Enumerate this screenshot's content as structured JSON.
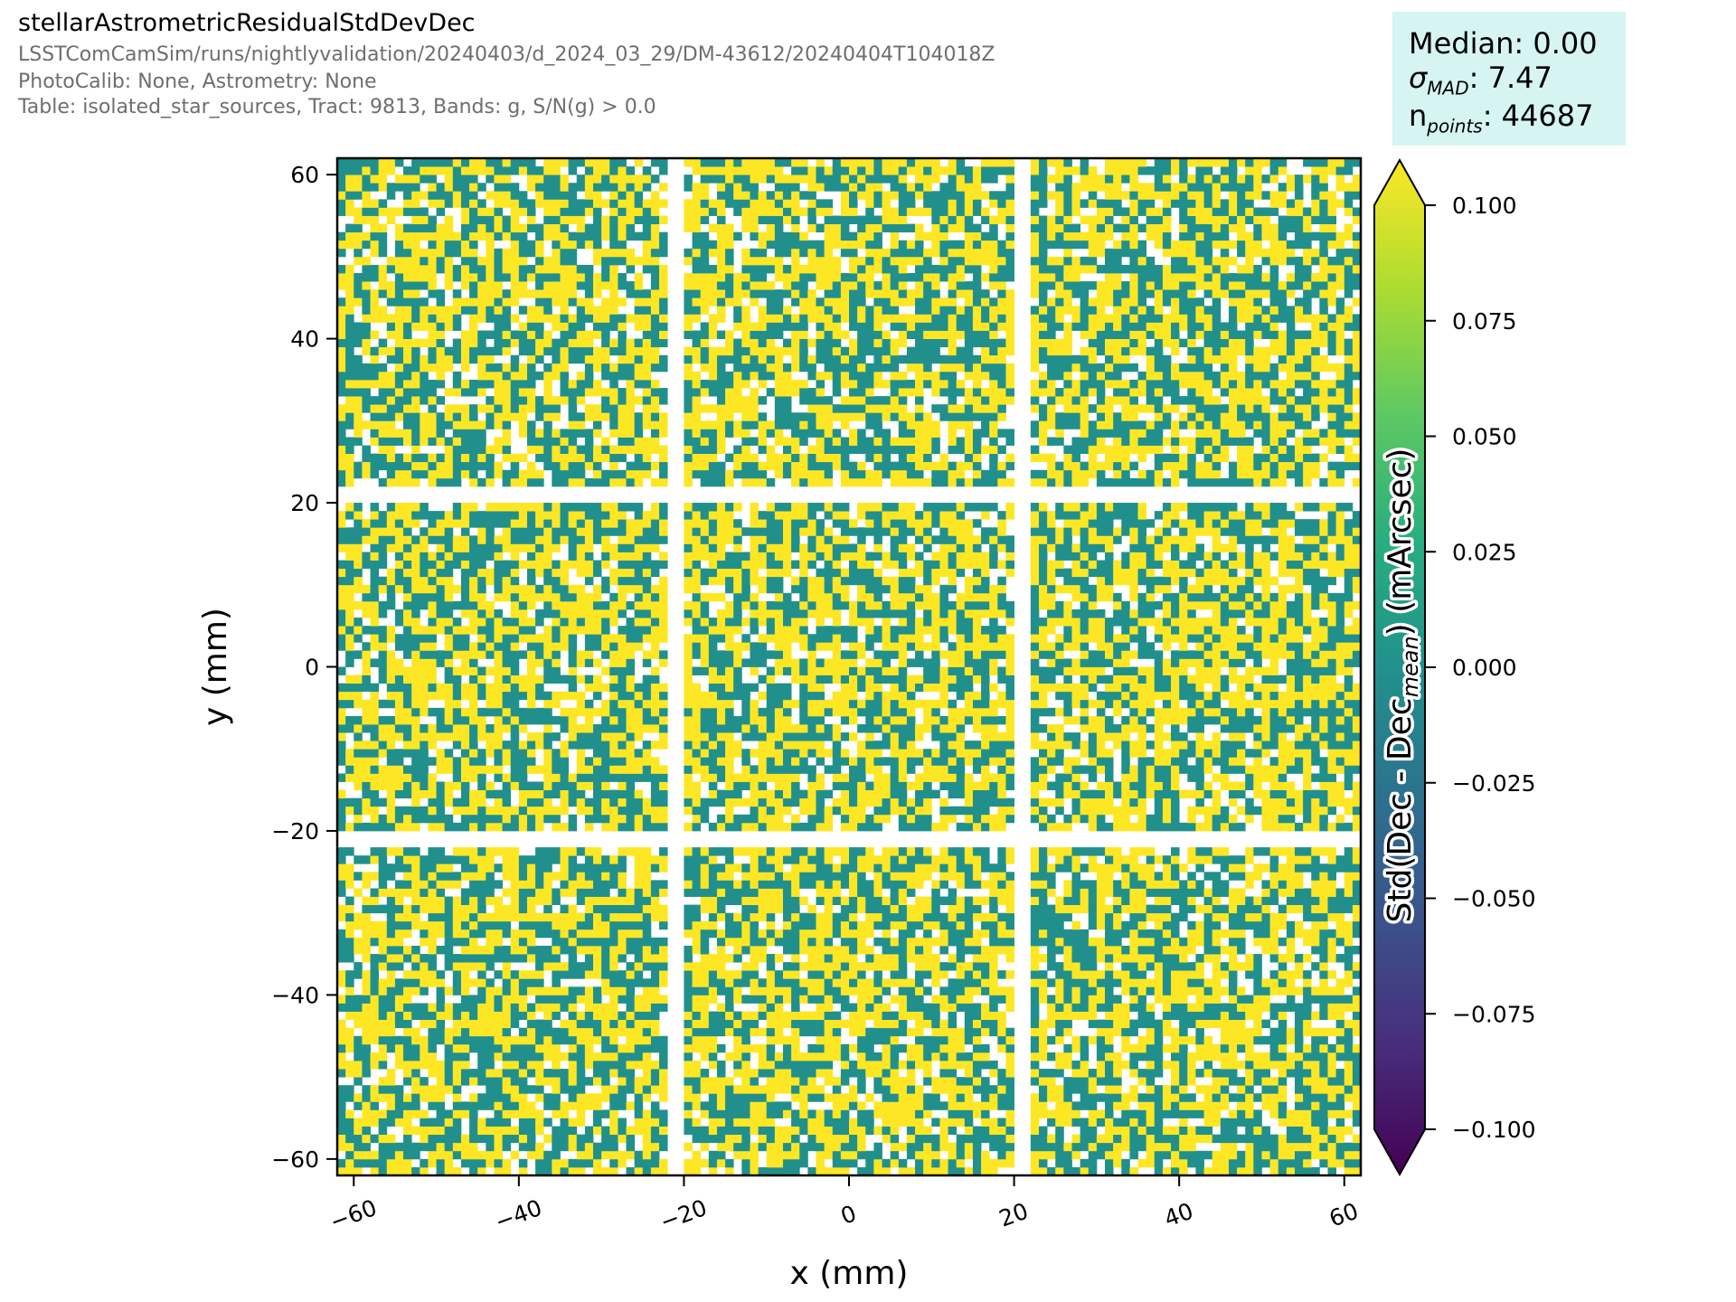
{
  "header": {
    "title": "stellarAstrometricResidualStdDevDec",
    "subtitle_lines": [
      "LSSTComCamSim/runs/nightlyvalidation/20240403/d_2024_03_29/DM-43612/20240404T104018Z",
      "PhotoCalib: None, Astrometry: None",
      "Table: isolated_star_sources, Tract: 9813, Bands: g, S/N(g) > 0.0"
    ]
  },
  "stats": {
    "median_label": "Median: 0.00",
    "sigma_symbol": "σ",
    "sigma_sub": "MAD",
    "sigma_value": ": 7.47",
    "npoints_symbol": "n",
    "npoints_sub": "points",
    "npoints_value": ": 44687"
  },
  "chart_data": {
    "type": "heatmap",
    "xlabel": "x (mm)",
    "ylabel": "y (mm)",
    "xlim": [
      -62,
      62
    ],
    "ylim": [
      -62,
      62
    ],
    "xticks": [
      -60,
      -40,
      -20,
      0,
      20,
      40,
      60
    ],
    "yticks": [
      -60,
      -40,
      -20,
      0,
      20,
      40,
      60
    ],
    "xtick_labels": [
      "−60",
      "−40",
      "−20",
      "0",
      "20",
      "40",
      "60"
    ],
    "ytick_labels": [
      "−60",
      "−40",
      "−20",
      "0",
      "20",
      "40",
      "60"
    ],
    "grid": false,
    "layout": "3x3 detector tiles separated by gaps",
    "tile_x_ranges": [
      [
        -62,
        -22
      ],
      [
        -20,
        20
      ],
      [
        22,
        62
      ]
    ],
    "tile_y_ranges": [
      [
        -62,
        -22
      ],
      [
        -20,
        20
      ],
      [
        22,
        62
      ]
    ],
    "cell_values_observed": [
      0.0,
      0.1,
      "empty"
    ],
    "cell_colors": {
      "high": "#fde725",
      "mid": "#21908d",
      "empty": "#ffffff"
    },
    "colorbar": {
      "label_main": "Std(Dec - Dec",
      "label_sub": "mean",
      "label_end": ") (mArcsec)",
      "vmin": -0.1,
      "vmax": 0.1,
      "extend": "both",
      "colormap": "viridis",
      "ticks": [
        0.1,
        0.075,
        0.05,
        0.025,
        0.0,
        -0.025,
        -0.05,
        -0.075,
        -0.1
      ],
      "tick_labels": [
        "0.100",
        "0.075",
        "0.050",
        "0.025",
        "0.000",
        "−0.025",
        "−0.050",
        "−0.075",
        "−0.100"
      ]
    }
  }
}
